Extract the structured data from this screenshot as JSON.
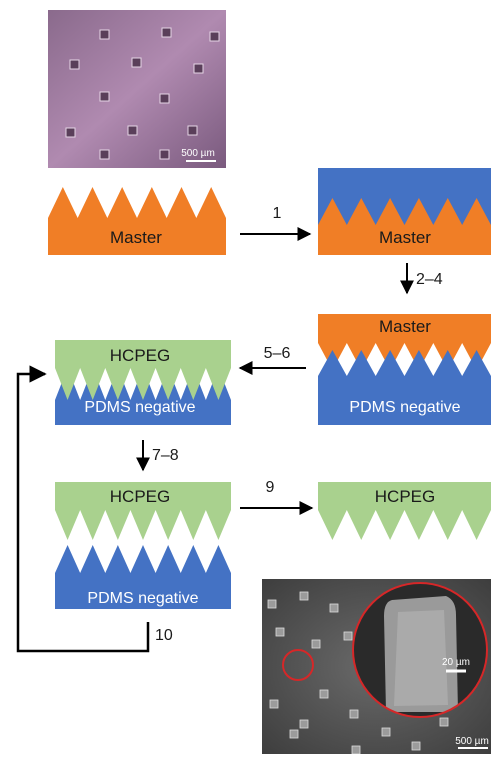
{
  "colors": {
    "master": "#f07e26",
    "pdms": "#4472c4",
    "hcpeg": "#a9d18e",
    "arrow": "#000000",
    "label_light": "#ffffff",
    "label_dark": "#1a1a1a",
    "circle": "#d62728"
  },
  "micrograph_top": {
    "scale_label": "500 µm"
  },
  "micrograph_bottom": {
    "scale_label": "500 µm",
    "inset_scale_label": "20 µm"
  },
  "labels": {
    "master": "Master",
    "pdms_negative": "PDMS negative",
    "hcpeg": "HCPEG"
  },
  "steps": {
    "s1": "1",
    "s2_4": "2–4",
    "s5_6": "5–6",
    "s7_8": "7–8",
    "s9": "9",
    "s10": "10"
  }
}
